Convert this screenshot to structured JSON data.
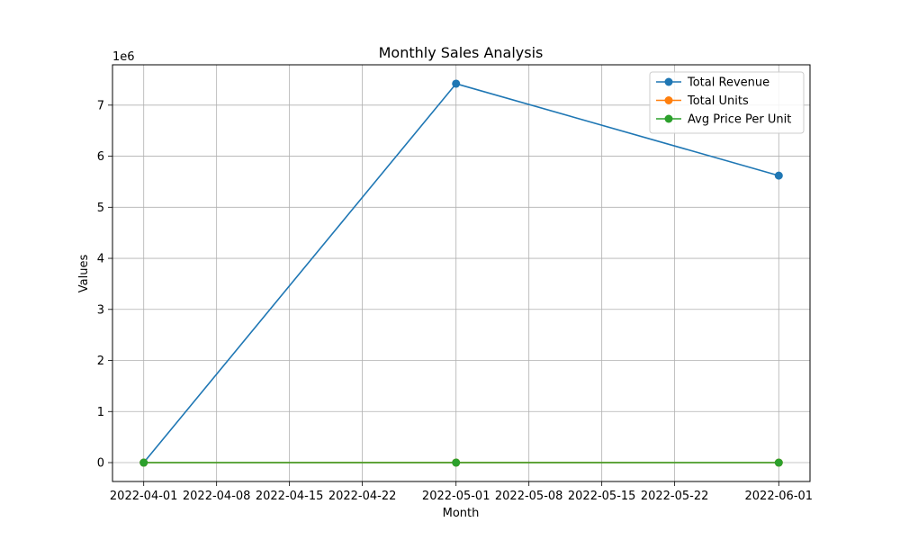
{
  "chart_data": {
    "type": "line",
    "title": "Monthly Sales Analysis",
    "xlabel": "Month",
    "ylabel": "Values",
    "y_scale_label": "1e6",
    "x": [
      "2022-04-01",
      "2022-05-01",
      "2022-06-01"
    ],
    "x_ticks": [
      "2022-04-01",
      "2022-04-08",
      "2022-04-15",
      "2022-04-22",
      "2022-05-01",
      "2022-05-08",
      "2022-05-15",
      "2022-05-22",
      "2022-06-01"
    ],
    "y_ticks": [
      0,
      1,
      2,
      3,
      4,
      5,
      6,
      7
    ],
    "ylim": [
      -0.37,
      7.79
    ],
    "xlim": [
      "2022-03-29",
      "2022-06-04"
    ],
    "grid": true,
    "legend_position": "top-right",
    "series": [
      {
        "name": "Total Revenue",
        "color": "#1f77b4",
        "values": [
          0.0,
          7.42,
          5.62
        ]
      },
      {
        "name": "Total Units",
        "color": "#ff7f0e",
        "values": [
          0.0,
          0.001,
          0.0
        ]
      },
      {
        "name": "Avg Price Per Unit",
        "color": "#2ca02c",
        "values": [
          0.0,
          0.0,
          0.0
        ]
      }
    ]
  }
}
